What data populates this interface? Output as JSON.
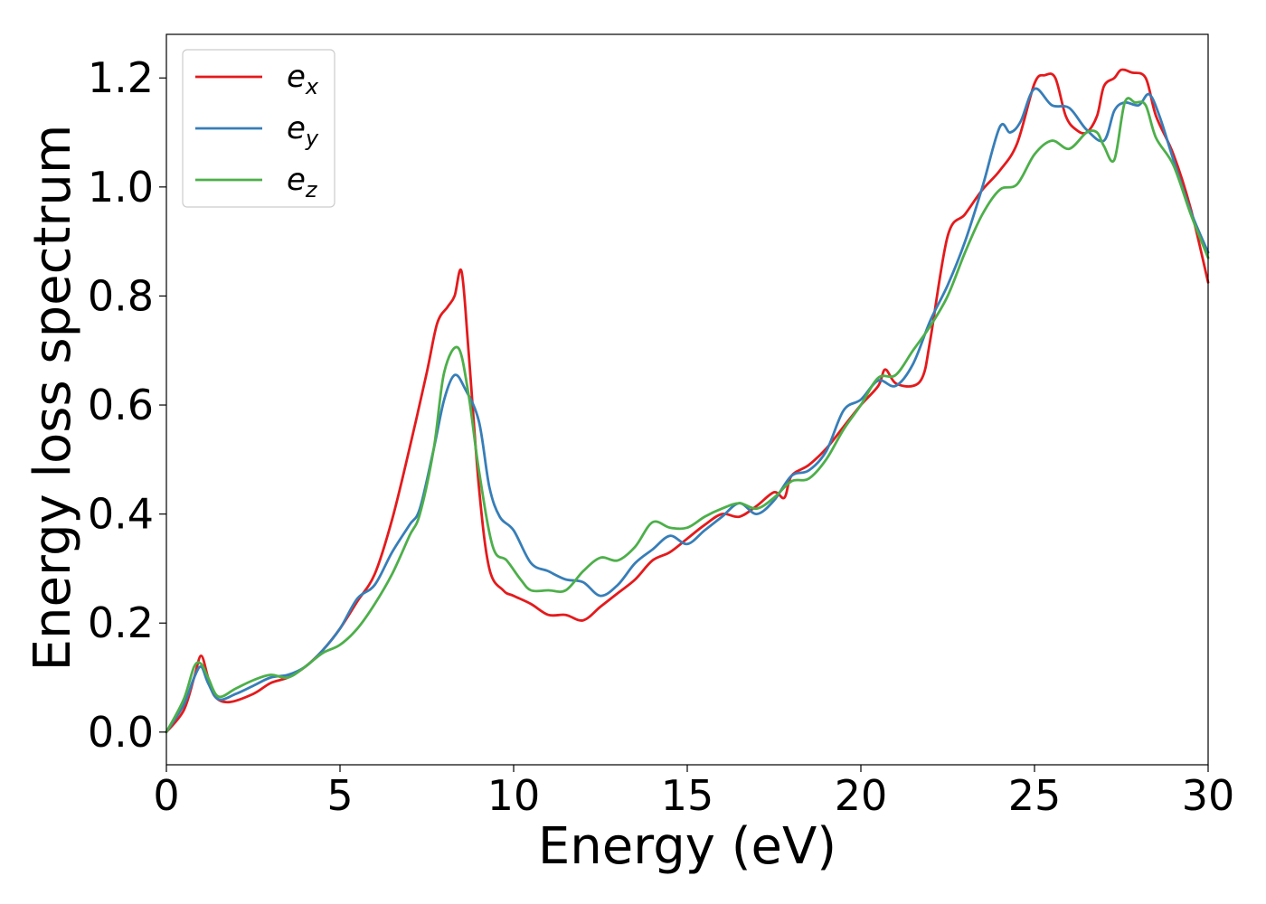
{
  "chart_data": {
    "type": "line",
    "title": "",
    "xlabel": "Energy (eV)",
    "ylabel": "Energy loss spectrum",
    "xlim": [
      0,
      30
    ],
    "ylim": [
      -0.06,
      1.28
    ],
    "xticks": [
      0,
      5,
      10,
      15,
      20,
      25,
      30
    ],
    "xtick_labels": [
      "0",
      "5",
      "10",
      "15",
      "20",
      "25",
      "30"
    ],
    "yticks": [
      0.0,
      0.2,
      0.4,
      0.6,
      0.8,
      1.0,
      1.2
    ],
    "ytick_labels": [
      "0.0",
      "0.2",
      "0.4",
      "0.6",
      "0.8",
      "1.0",
      "1.2"
    ],
    "grid": false,
    "legend_position": "top-left",
    "series": [
      {
        "name": "e_x",
        "legend_base": "e",
        "legend_sub": "x",
        "color": "#e41a1c",
        "points": [
          [
            0,
            0
          ],
          [
            0.5,
            0.04
          ],
          [
            0.8,
            0.1
          ],
          [
            1.0,
            0.14
          ],
          [
            1.2,
            0.1
          ],
          [
            1.4,
            0.065
          ],
          [
            1.8,
            0.055
          ],
          [
            2.5,
            0.07
          ],
          [
            3.0,
            0.09
          ],
          [
            3.5,
            0.1
          ],
          [
            4.0,
            0.12
          ],
          [
            4.5,
            0.15
          ],
          [
            5.0,
            0.19
          ],
          [
            5.5,
            0.24
          ],
          [
            6.0,
            0.29
          ],
          [
            6.5,
            0.39
          ],
          [
            7.0,
            0.52
          ],
          [
            7.5,
            0.66
          ],
          [
            7.8,
            0.75
          ],
          [
            8.1,
            0.78
          ],
          [
            8.3,
            0.8
          ],
          [
            8.5,
            0.845
          ],
          [
            8.7,
            0.7
          ],
          [
            9.0,
            0.45
          ],
          [
            9.3,
            0.3
          ],
          [
            9.7,
            0.26
          ],
          [
            10.0,
            0.25
          ],
          [
            10.5,
            0.235
          ],
          [
            11.0,
            0.215
          ],
          [
            11.5,
            0.215
          ],
          [
            12.0,
            0.205
          ],
          [
            12.5,
            0.23
          ],
          [
            13.0,
            0.255
          ],
          [
            13.5,
            0.28
          ],
          [
            14.0,
            0.315
          ],
          [
            14.5,
            0.33
          ],
          [
            15.0,
            0.355
          ],
          [
            15.5,
            0.38
          ],
          [
            16.0,
            0.4
          ],
          [
            16.5,
            0.395
          ],
          [
            17.0,
            0.415
          ],
          [
            17.5,
            0.44
          ],
          [
            17.8,
            0.43
          ],
          [
            18.0,
            0.47
          ],
          [
            18.5,
            0.49
          ],
          [
            19.0,
            0.52
          ],
          [
            19.5,
            0.56
          ],
          [
            20.0,
            0.6
          ],
          [
            20.5,
            0.635
          ],
          [
            20.7,
            0.665
          ],
          [
            21.0,
            0.64
          ],
          [
            21.5,
            0.635
          ],
          [
            21.8,
            0.655
          ],
          [
            22.0,
            0.72
          ],
          [
            22.5,
            0.91
          ],
          [
            23.0,
            0.95
          ],
          [
            23.5,
            0.995
          ],
          [
            24.0,
            1.03
          ],
          [
            24.5,
            1.08
          ],
          [
            25.0,
            1.19
          ],
          [
            25.3,
            1.205
          ],
          [
            25.6,
            1.2
          ],
          [
            25.9,
            1.13
          ],
          [
            26.2,
            1.105
          ],
          [
            26.5,
            1.1
          ],
          [
            26.8,
            1.13
          ],
          [
            27.0,
            1.185
          ],
          [
            27.3,
            1.2
          ],
          [
            27.5,
            1.215
          ],
          [
            27.8,
            1.21
          ],
          [
            28.2,
            1.2
          ],
          [
            28.5,
            1.13
          ],
          [
            29.0,
            1.06
          ],
          [
            29.5,
            0.96
          ],
          [
            30.0,
            0.825
          ]
        ]
      },
      {
        "name": "e_y",
        "legend_base": "e",
        "legend_sub": "y",
        "color": "#377eb8",
        "points": [
          [
            0,
            0
          ],
          [
            0.5,
            0.05
          ],
          [
            0.8,
            0.1
          ],
          [
            1.0,
            0.12
          ],
          [
            1.2,
            0.09
          ],
          [
            1.5,
            0.06
          ],
          [
            2.0,
            0.07
          ],
          [
            2.5,
            0.085
          ],
          [
            3.0,
            0.1
          ],
          [
            3.5,
            0.105
          ],
          [
            4.0,
            0.12
          ],
          [
            4.5,
            0.15
          ],
          [
            5.0,
            0.19
          ],
          [
            5.5,
            0.245
          ],
          [
            6.0,
            0.27
          ],
          [
            6.5,
            0.33
          ],
          [
            7.0,
            0.38
          ],
          [
            7.3,
            0.41
          ],
          [
            7.7,
            0.52
          ],
          [
            8.0,
            0.61
          ],
          [
            8.3,
            0.655
          ],
          [
            8.6,
            0.63
          ],
          [
            9.0,
            0.57
          ],
          [
            9.3,
            0.45
          ],
          [
            9.6,
            0.395
          ],
          [
            10.0,
            0.37
          ],
          [
            10.5,
            0.31
          ],
          [
            11.0,
            0.295
          ],
          [
            11.5,
            0.28
          ],
          [
            12.0,
            0.275
          ],
          [
            12.5,
            0.25
          ],
          [
            13.0,
            0.27
          ],
          [
            13.5,
            0.31
          ],
          [
            14.0,
            0.335
          ],
          [
            14.5,
            0.36
          ],
          [
            15.0,
            0.345
          ],
          [
            15.5,
            0.37
          ],
          [
            16.0,
            0.395
          ],
          [
            16.5,
            0.42
          ],
          [
            17.0,
            0.4
          ],
          [
            17.5,
            0.425
          ],
          [
            18.0,
            0.47
          ],
          [
            18.5,
            0.48
          ],
          [
            19.0,
            0.515
          ],
          [
            19.5,
            0.59
          ],
          [
            20.0,
            0.61
          ],
          [
            20.5,
            0.645
          ],
          [
            21.0,
            0.635
          ],
          [
            21.5,
            0.675
          ],
          [
            22.0,
            0.755
          ],
          [
            22.5,
            0.82
          ],
          [
            23.0,
            0.9
          ],
          [
            23.5,
            1.0
          ],
          [
            24.0,
            1.11
          ],
          [
            24.3,
            1.1
          ],
          [
            24.6,
            1.12
          ],
          [
            25.0,
            1.18
          ],
          [
            25.5,
            1.15
          ],
          [
            26.0,
            1.145
          ],
          [
            26.5,
            1.105
          ],
          [
            27.0,
            1.085
          ],
          [
            27.3,
            1.14
          ],
          [
            27.6,
            1.155
          ],
          [
            28.0,
            1.15
          ],
          [
            28.3,
            1.17
          ],
          [
            28.6,
            1.13
          ],
          [
            29.0,
            1.05
          ],
          [
            29.5,
            0.955
          ],
          [
            30.0,
            0.88
          ]
        ]
      },
      {
        "name": "e_z",
        "legend_base": "e",
        "legend_sub": "z",
        "color": "#4daf4a",
        "points": [
          [
            0,
            0
          ],
          [
            0.5,
            0.06
          ],
          [
            0.8,
            0.12
          ],
          [
            1.0,
            0.125
          ],
          [
            1.2,
            0.1
          ],
          [
            1.5,
            0.065
          ],
          [
            2.0,
            0.08
          ],
          [
            2.5,
            0.095
          ],
          [
            3.0,
            0.105
          ],
          [
            3.5,
            0.1
          ],
          [
            4.0,
            0.12
          ],
          [
            4.5,
            0.145
          ],
          [
            5.0,
            0.16
          ],
          [
            5.5,
            0.19
          ],
          [
            6.0,
            0.235
          ],
          [
            6.5,
            0.29
          ],
          [
            7.0,
            0.36
          ],
          [
            7.3,
            0.4
          ],
          [
            7.7,
            0.52
          ],
          [
            8.0,
            0.66
          ],
          [
            8.4,
            0.705
          ],
          [
            8.7,
            0.62
          ],
          [
            9.0,
            0.48
          ],
          [
            9.4,
            0.34
          ],
          [
            9.8,
            0.315
          ],
          [
            10.2,
            0.28
          ],
          [
            10.5,
            0.26
          ],
          [
            11.0,
            0.26
          ],
          [
            11.5,
            0.26
          ],
          [
            12.0,
            0.295
          ],
          [
            12.5,
            0.32
          ],
          [
            13.0,
            0.315
          ],
          [
            13.5,
            0.34
          ],
          [
            14.0,
            0.385
          ],
          [
            14.5,
            0.375
          ],
          [
            15.0,
            0.375
          ],
          [
            15.5,
            0.395
          ],
          [
            16.0,
            0.41
          ],
          [
            16.5,
            0.42
          ],
          [
            17.0,
            0.41
          ],
          [
            17.5,
            0.43
          ],
          [
            18.0,
            0.46
          ],
          [
            18.5,
            0.465
          ],
          [
            19.0,
            0.5
          ],
          [
            19.5,
            0.555
          ],
          [
            20.0,
            0.6
          ],
          [
            20.5,
            0.65
          ],
          [
            21.0,
            0.655
          ],
          [
            21.5,
            0.7
          ],
          [
            22.0,
            0.745
          ],
          [
            22.5,
            0.8
          ],
          [
            23.0,
            0.88
          ],
          [
            23.5,
            0.95
          ],
          [
            24.0,
            0.995
          ],
          [
            24.5,
            1.005
          ],
          [
            25.0,
            1.06
          ],
          [
            25.5,
            1.085
          ],
          [
            26.0,
            1.07
          ],
          [
            26.5,
            1.1
          ],
          [
            26.8,
            1.1
          ],
          [
            27.0,
            1.075
          ],
          [
            27.3,
            1.05
          ],
          [
            27.6,
            1.155
          ],
          [
            27.9,
            1.155
          ],
          [
            28.2,
            1.15
          ],
          [
            28.5,
            1.09
          ],
          [
            29.0,
            1.04
          ],
          [
            29.5,
            0.95
          ],
          [
            30.0,
            0.87
          ]
        ]
      }
    ]
  }
}
